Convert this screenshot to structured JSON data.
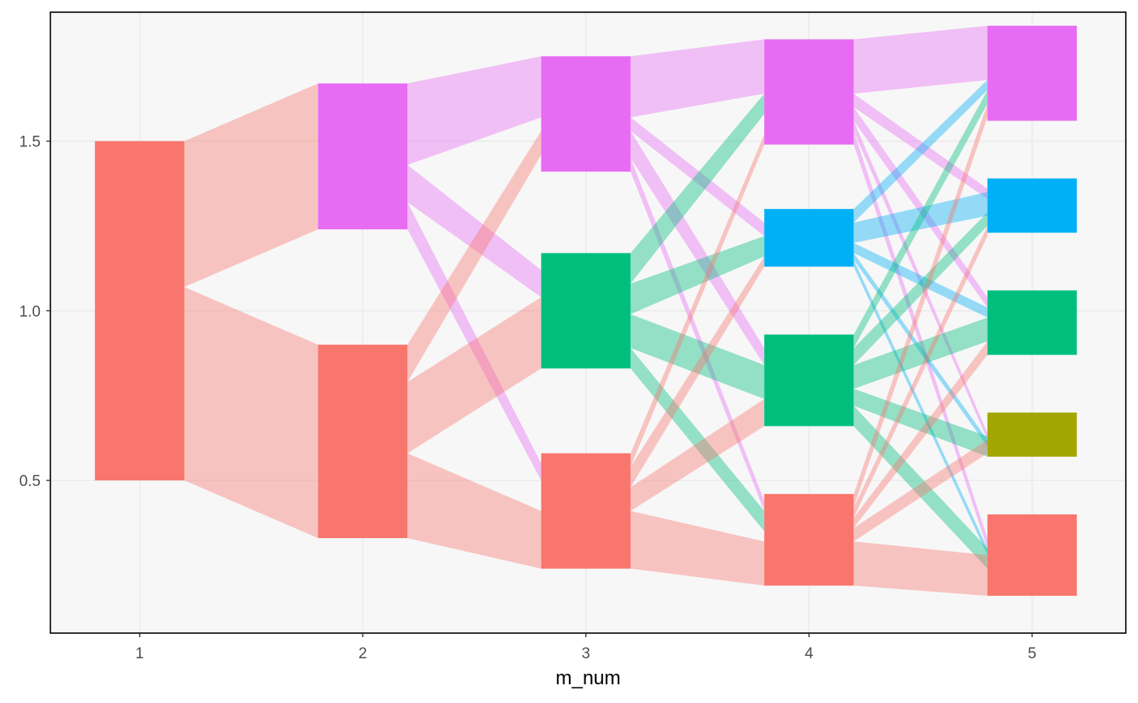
{
  "chart_data": {
    "type": "alluvial",
    "title": "",
    "xlabel": "m_num",
    "ylabel": "",
    "x_ticks": [
      "1",
      "2",
      "3",
      "4",
      "5"
    ],
    "y_ticks": [
      0.5,
      1.0,
      1.5
    ],
    "y_tick_labels": [
      "0.5",
      "1.0",
      "1.5"
    ],
    "xlim": [
      0.6,
      5.42
    ],
    "ylim": [
      0.05,
      1.88
    ],
    "grid": true,
    "colors": {
      "red": "#F8766D",
      "olive": "#A3A500",
      "green": "#00BF7D",
      "blue": "#00B0F6",
      "magenta": "#E76BF3",
      "panel": "#F7F7F7",
      "gridline": "#EBEBEB",
      "border": "#000000"
    },
    "nodes": [
      {
        "id": "n1_red",
        "x": 1,
        "ymin": 0.5,
        "ymax": 1.5,
        "color": "red"
      },
      {
        "id": "n2_mag",
        "x": 2,
        "ymin": 1.24,
        "ymax": 1.67,
        "color": "magenta"
      },
      {
        "id": "n2_red",
        "x": 2,
        "ymin": 0.33,
        "ymax": 0.9,
        "color": "red"
      },
      {
        "id": "n3_mag",
        "x": 3,
        "ymin": 1.41,
        "ymax": 1.75,
        "color": "magenta"
      },
      {
        "id": "n3_green",
        "x": 3,
        "ymin": 0.83,
        "ymax": 1.17,
        "color": "green"
      },
      {
        "id": "n3_red",
        "x": 3,
        "ymin": 0.24,
        "ymax": 0.58,
        "color": "red"
      },
      {
        "id": "n4_mag",
        "x": 4,
        "ymin": 1.49,
        "ymax": 1.8,
        "color": "magenta"
      },
      {
        "id": "n4_blue",
        "x": 4,
        "ymin": 1.13,
        "ymax": 1.3,
        "color": "blue"
      },
      {
        "id": "n4_green",
        "x": 4,
        "ymin": 0.66,
        "ymax": 0.93,
        "color": "green"
      },
      {
        "id": "n4_red",
        "x": 4,
        "ymin": 0.19,
        "ymax": 0.46,
        "color": "red"
      },
      {
        "id": "n5_mag",
        "x": 5,
        "ymin": 1.56,
        "ymax": 1.84,
        "color": "magenta"
      },
      {
        "id": "n5_blue",
        "x": 5,
        "ymin": 1.23,
        "ymax": 1.39,
        "color": "blue"
      },
      {
        "id": "n5_green",
        "x": 5,
        "ymin": 0.87,
        "ymax": 1.06,
        "color": "green"
      },
      {
        "id": "n5_olive",
        "x": 5,
        "ymin": 0.57,
        "ymax": 0.7,
        "color": "olive"
      },
      {
        "id": "n5_red",
        "x": 5,
        "ymin": 0.16,
        "ymax": 0.4,
        "color": "red"
      }
    ],
    "flows": [
      {
        "from": 1,
        "to": 2,
        "y0": [
          1.07,
          1.5
        ],
        "y1": [
          1.24,
          1.67
        ],
        "color": "red"
      },
      {
        "from": 1,
        "to": 2,
        "y0": [
          0.5,
          1.07
        ],
        "y1": [
          0.33,
          0.9
        ],
        "color": "red"
      },
      {
        "from": 2,
        "to": 3,
        "y0": [
          1.43,
          1.67
        ],
        "y1": [
          1.57,
          1.75
        ],
        "color": "magenta"
      },
      {
        "from": 2,
        "to": 3,
        "y0": [
          1.32,
          1.43
        ],
        "y1": [
          1.04,
          1.12
        ],
        "color": "magenta"
      },
      {
        "from": 2,
        "to": 3,
        "y0": [
          1.24,
          1.32
        ],
        "y1": [
          0.5,
          0.55
        ],
        "color": "magenta"
      },
      {
        "from": 2,
        "to": 3,
        "y0": [
          0.79,
          0.9
        ],
        "y1": [
          1.46,
          1.53
        ],
        "color": "red"
      },
      {
        "from": 2,
        "to": 3,
        "y0": [
          0.58,
          0.79
        ],
        "y1": [
          0.83,
          1.04
        ],
        "color": "red"
      },
      {
        "from": 2,
        "to": 3,
        "y0": [
          0.33,
          0.58
        ],
        "y1": [
          0.24,
          0.41
        ],
        "color": "red"
      },
      {
        "from": 3,
        "to": 4,
        "y0": [
          1.57,
          1.75
        ],
        "y1": [
          1.64,
          1.8
        ],
        "color": "magenta"
      },
      {
        "from": 3,
        "to": 4,
        "y0": [
          1.53,
          1.57
        ],
        "y1": [
          1.22,
          1.26
        ],
        "color": "magenta"
      },
      {
        "from": 3,
        "to": 4,
        "y0": [
          1.45,
          1.53
        ],
        "y1": [
          0.84,
          0.89
        ],
        "color": "magenta"
      },
      {
        "from": 3,
        "to": 4,
        "y0": [
          1.41,
          1.45
        ],
        "y1": [
          0.41,
          0.44
        ],
        "color": "magenta"
      },
      {
        "from": 3,
        "to": 4,
        "y0": [
          1.08,
          1.17
        ],
        "y1": [
          1.58,
          1.64
        ],
        "color": "green"
      },
      {
        "from": 3,
        "to": 4,
        "y0": [
          0.99,
          1.08
        ],
        "y1": [
          1.16,
          1.22
        ],
        "color": "green"
      },
      {
        "from": 3,
        "to": 4,
        "y0": [
          0.89,
          0.99
        ],
        "y1": [
          0.74,
          0.84
        ],
        "color": "green"
      },
      {
        "from": 3,
        "to": 4,
        "y0": [
          0.83,
          0.89
        ],
        "y1": [
          0.35,
          0.41
        ],
        "color": "green"
      },
      {
        "from": 3,
        "to": 4,
        "y0": [
          0.54,
          0.58
        ],
        "y1": [
          1.49,
          1.52
        ],
        "color": "red"
      },
      {
        "from": 3,
        "to": 4,
        "y0": [
          0.48,
          0.54
        ],
        "y1": [
          1.13,
          1.16
        ],
        "color": "red"
      },
      {
        "from": 3,
        "to": 4,
        "y0": [
          0.41,
          0.48
        ],
        "y1": [
          0.66,
          0.74
        ],
        "color": "red"
      },
      {
        "from": 3,
        "to": 4,
        "y0": [
          0.24,
          0.41
        ],
        "y1": [
          0.19,
          0.32
        ],
        "color": "red"
      },
      {
        "from": 4,
        "to": 5,
        "y0": [
          1.64,
          1.8
        ],
        "y1": [
          1.68,
          1.84
        ],
        "color": "magenta"
      },
      {
        "from": 4,
        "to": 5,
        "y0": [
          1.6,
          1.64
        ],
        "y1": [
          1.33,
          1.36
        ],
        "color": "magenta"
      },
      {
        "from": 4,
        "to": 5,
        "y0": [
          1.56,
          1.6
        ],
        "y1": [
          1.01,
          1.04
        ],
        "color": "magenta"
      },
      {
        "from": 4,
        "to": 5,
        "y0": [
          1.53,
          1.56
        ],
        "y1": [
          0.62,
          0.64
        ],
        "color": "magenta"
      },
      {
        "from": 4,
        "to": 5,
        "y0": [
          1.49,
          1.53
        ],
        "y1": [
          0.3,
          0.33
        ],
        "color": "magenta"
      },
      {
        "from": 4,
        "to": 5,
        "y0": [
          1.26,
          1.3
        ],
        "y1": [
          1.65,
          1.68
        ],
        "color": "blue"
      },
      {
        "from": 4,
        "to": 5,
        "y0": [
          1.2,
          1.26
        ],
        "y1": [
          1.28,
          1.35
        ],
        "color": "blue"
      },
      {
        "from": 4,
        "to": 5,
        "y0": [
          1.17,
          1.2
        ],
        "y1": [
          0.98,
          1.01
        ],
        "color": "blue"
      },
      {
        "from": 4,
        "to": 5,
        "y0": [
          1.15,
          1.17
        ],
        "y1": [
          0.6,
          0.62
        ],
        "color": "blue"
      },
      {
        "from": 4,
        "to": 5,
        "y0": [
          1.13,
          1.15
        ],
        "y1": [
          0.28,
          0.3
        ],
        "color": "blue"
      },
      {
        "from": 4,
        "to": 5,
        "y0": [
          0.89,
          0.93
        ],
        "y1": [
          1.61,
          1.65
        ],
        "color": "green"
      },
      {
        "from": 4,
        "to": 5,
        "y0": [
          0.84,
          0.89
        ],
        "y1": [
          1.25,
          1.29
        ],
        "color": "green"
      },
      {
        "from": 4,
        "to": 5,
        "y0": [
          0.77,
          0.84
        ],
        "y1": [
          0.91,
          0.98
        ],
        "color": "green"
      },
      {
        "from": 4,
        "to": 5,
        "y0": [
          0.72,
          0.77
        ],
        "y1": [
          0.57,
          0.63
        ],
        "color": "green"
      },
      {
        "from": 4,
        "to": 5,
        "y0": [
          0.66,
          0.72
        ],
        "y1": [
          0.24,
          0.3
        ],
        "color": "green"
      },
      {
        "from": 4,
        "to": 5,
        "y0": [
          0.42,
          0.46
        ],
        "y1": [
          1.57,
          1.61
        ],
        "color": "red"
      },
      {
        "from": 4,
        "to": 5,
        "y0": [
          0.39,
          0.42
        ],
        "y1": [
          1.22,
          1.25
        ],
        "color": "red"
      },
      {
        "from": 4,
        "to": 5,
        "y0": [
          0.36,
          0.39
        ],
        "y1": [
          0.87,
          0.91
        ],
        "color": "red"
      },
      {
        "from": 4,
        "to": 5,
        "y0": [
          0.32,
          0.36
        ],
        "y1": [
          0.58,
          0.62
        ],
        "color": "red"
      },
      {
        "from": 4,
        "to": 5,
        "y0": [
          0.19,
          0.32
        ],
        "y1": [
          0.16,
          0.28
        ],
        "color": "red"
      }
    ]
  }
}
